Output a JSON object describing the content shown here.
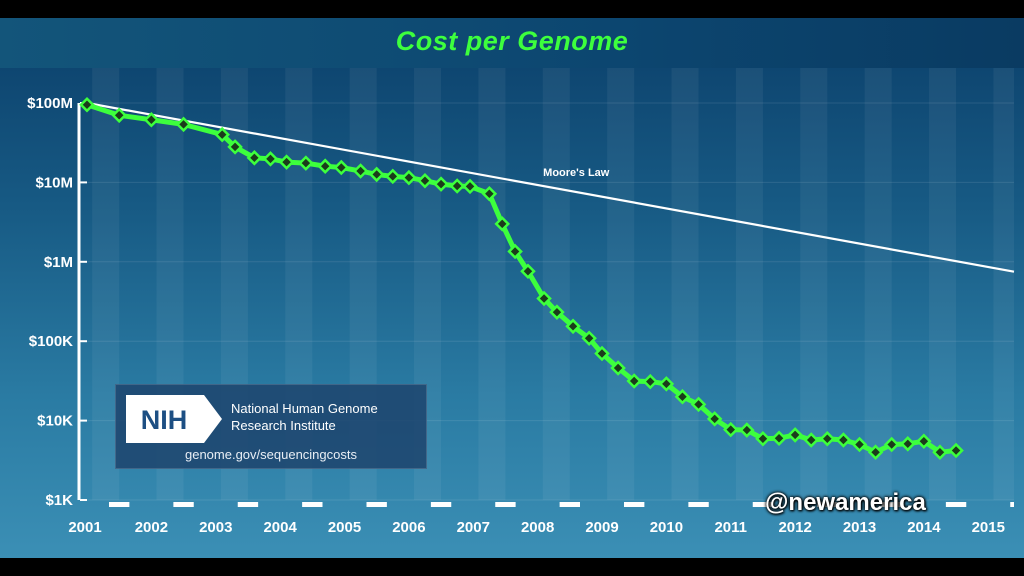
{
  "chart_data": {
    "type": "line",
    "title": "Cost per Genome",
    "y_scale": "log",
    "ylim": [
      1000,
      100000000
    ],
    "y_tick_labels": [
      "$100M",
      "$10M",
      "$1M",
      "$100K",
      "$10K",
      "$1K"
    ],
    "y_tick_values": [
      100000000,
      10000000,
      1000000,
      100000,
      10000,
      1000
    ],
    "x_tick_labels": [
      "2001",
      "2002",
      "2003",
      "2004",
      "2005",
      "2006",
      "2007",
      "2008",
      "2009",
      "2010",
      "2011",
      "2012",
      "2013",
      "2014",
      "2015"
    ],
    "x_tick_values": [
      2001,
      2002,
      2003,
      2004,
      2005,
      2006,
      2007,
      2008,
      2009,
      2010,
      2011,
      2012,
      2013,
      2014,
      2015
    ],
    "xlim": [
      2001,
      2015.4
    ],
    "series": [
      {
        "name": "",
        "color": "#3dff3d",
        "marker": "diamond",
        "points": [
          [
            2001.0,
            95000000
          ],
          [
            2001.5,
            70000000
          ],
          [
            2002.0,
            61500000
          ],
          [
            2002.5,
            53800000
          ],
          [
            2003.1,
            40000000
          ],
          [
            2003.3,
            28000000
          ],
          [
            2003.6,
            20400000
          ],
          [
            2003.85,
            19800000
          ],
          [
            2004.1,
            18000000
          ],
          [
            2004.4,
            17500000
          ],
          [
            2004.7,
            16000000
          ],
          [
            2004.95,
            15400000
          ],
          [
            2005.25,
            13900000
          ],
          [
            2005.5,
            12600000
          ],
          [
            2005.75,
            11900000
          ],
          [
            2006.0,
            11500000
          ],
          [
            2006.25,
            10500000
          ],
          [
            2006.5,
            9500000
          ],
          [
            2006.75,
            9000000
          ],
          [
            2006.95,
            8900000
          ],
          [
            2007.25,
            7200000
          ],
          [
            2007.45,
            3000000
          ],
          [
            2007.65,
            1350000
          ],
          [
            2007.85,
            760000
          ],
          [
            2008.1,
            345000
          ],
          [
            2008.3,
            232000
          ],
          [
            2008.55,
            154000
          ],
          [
            2008.8,
            109000
          ],
          [
            2009.0,
            70000
          ],
          [
            2009.25,
            46000
          ],
          [
            2009.5,
            31500
          ],
          [
            2009.75,
            31000
          ],
          [
            2010.0,
            29000
          ],
          [
            2010.25,
            20000
          ],
          [
            2010.5,
            16000
          ],
          [
            2010.75,
            10500
          ],
          [
            2011.0,
            7700
          ],
          [
            2011.25,
            7600
          ],
          [
            2011.5,
            5900
          ],
          [
            2011.75,
            6000
          ],
          [
            2012.0,
            6600
          ],
          [
            2012.25,
            5700
          ],
          [
            2012.5,
            5900
          ],
          [
            2012.75,
            5700
          ],
          [
            2013.0,
            5000
          ],
          [
            2013.25,
            4000
          ],
          [
            2013.5,
            5000
          ],
          [
            2013.75,
            5100
          ],
          [
            2014.0,
            5500
          ],
          [
            2014.25,
            4000
          ],
          [
            2014.5,
            4200
          ]
        ]
      },
      {
        "name": "Moore's Law",
        "color": "#ffffff",
        "points": [
          [
            2001.0,
            100000000
          ],
          [
            2015.4,
            750000
          ]
        ]
      }
    ],
    "annotations": [
      {
        "text": "Moore's Law",
        "x": 2008.6,
        "y": 12000000
      }
    ]
  },
  "legend_box": {
    "logo_text": "NIH",
    "institute_line_1": "National Human Genome",
    "institute_line_2": "Research Institute",
    "url": "genome.gov/sequencingcosts"
  },
  "watermark": "@newamerica",
  "colors": {
    "cost_line": "#3dff3d",
    "moore_line": "#ffffff",
    "title": "#3dff3d",
    "background_top": "#0b3f6a",
    "background_bottom": "#3b8fb5"
  }
}
